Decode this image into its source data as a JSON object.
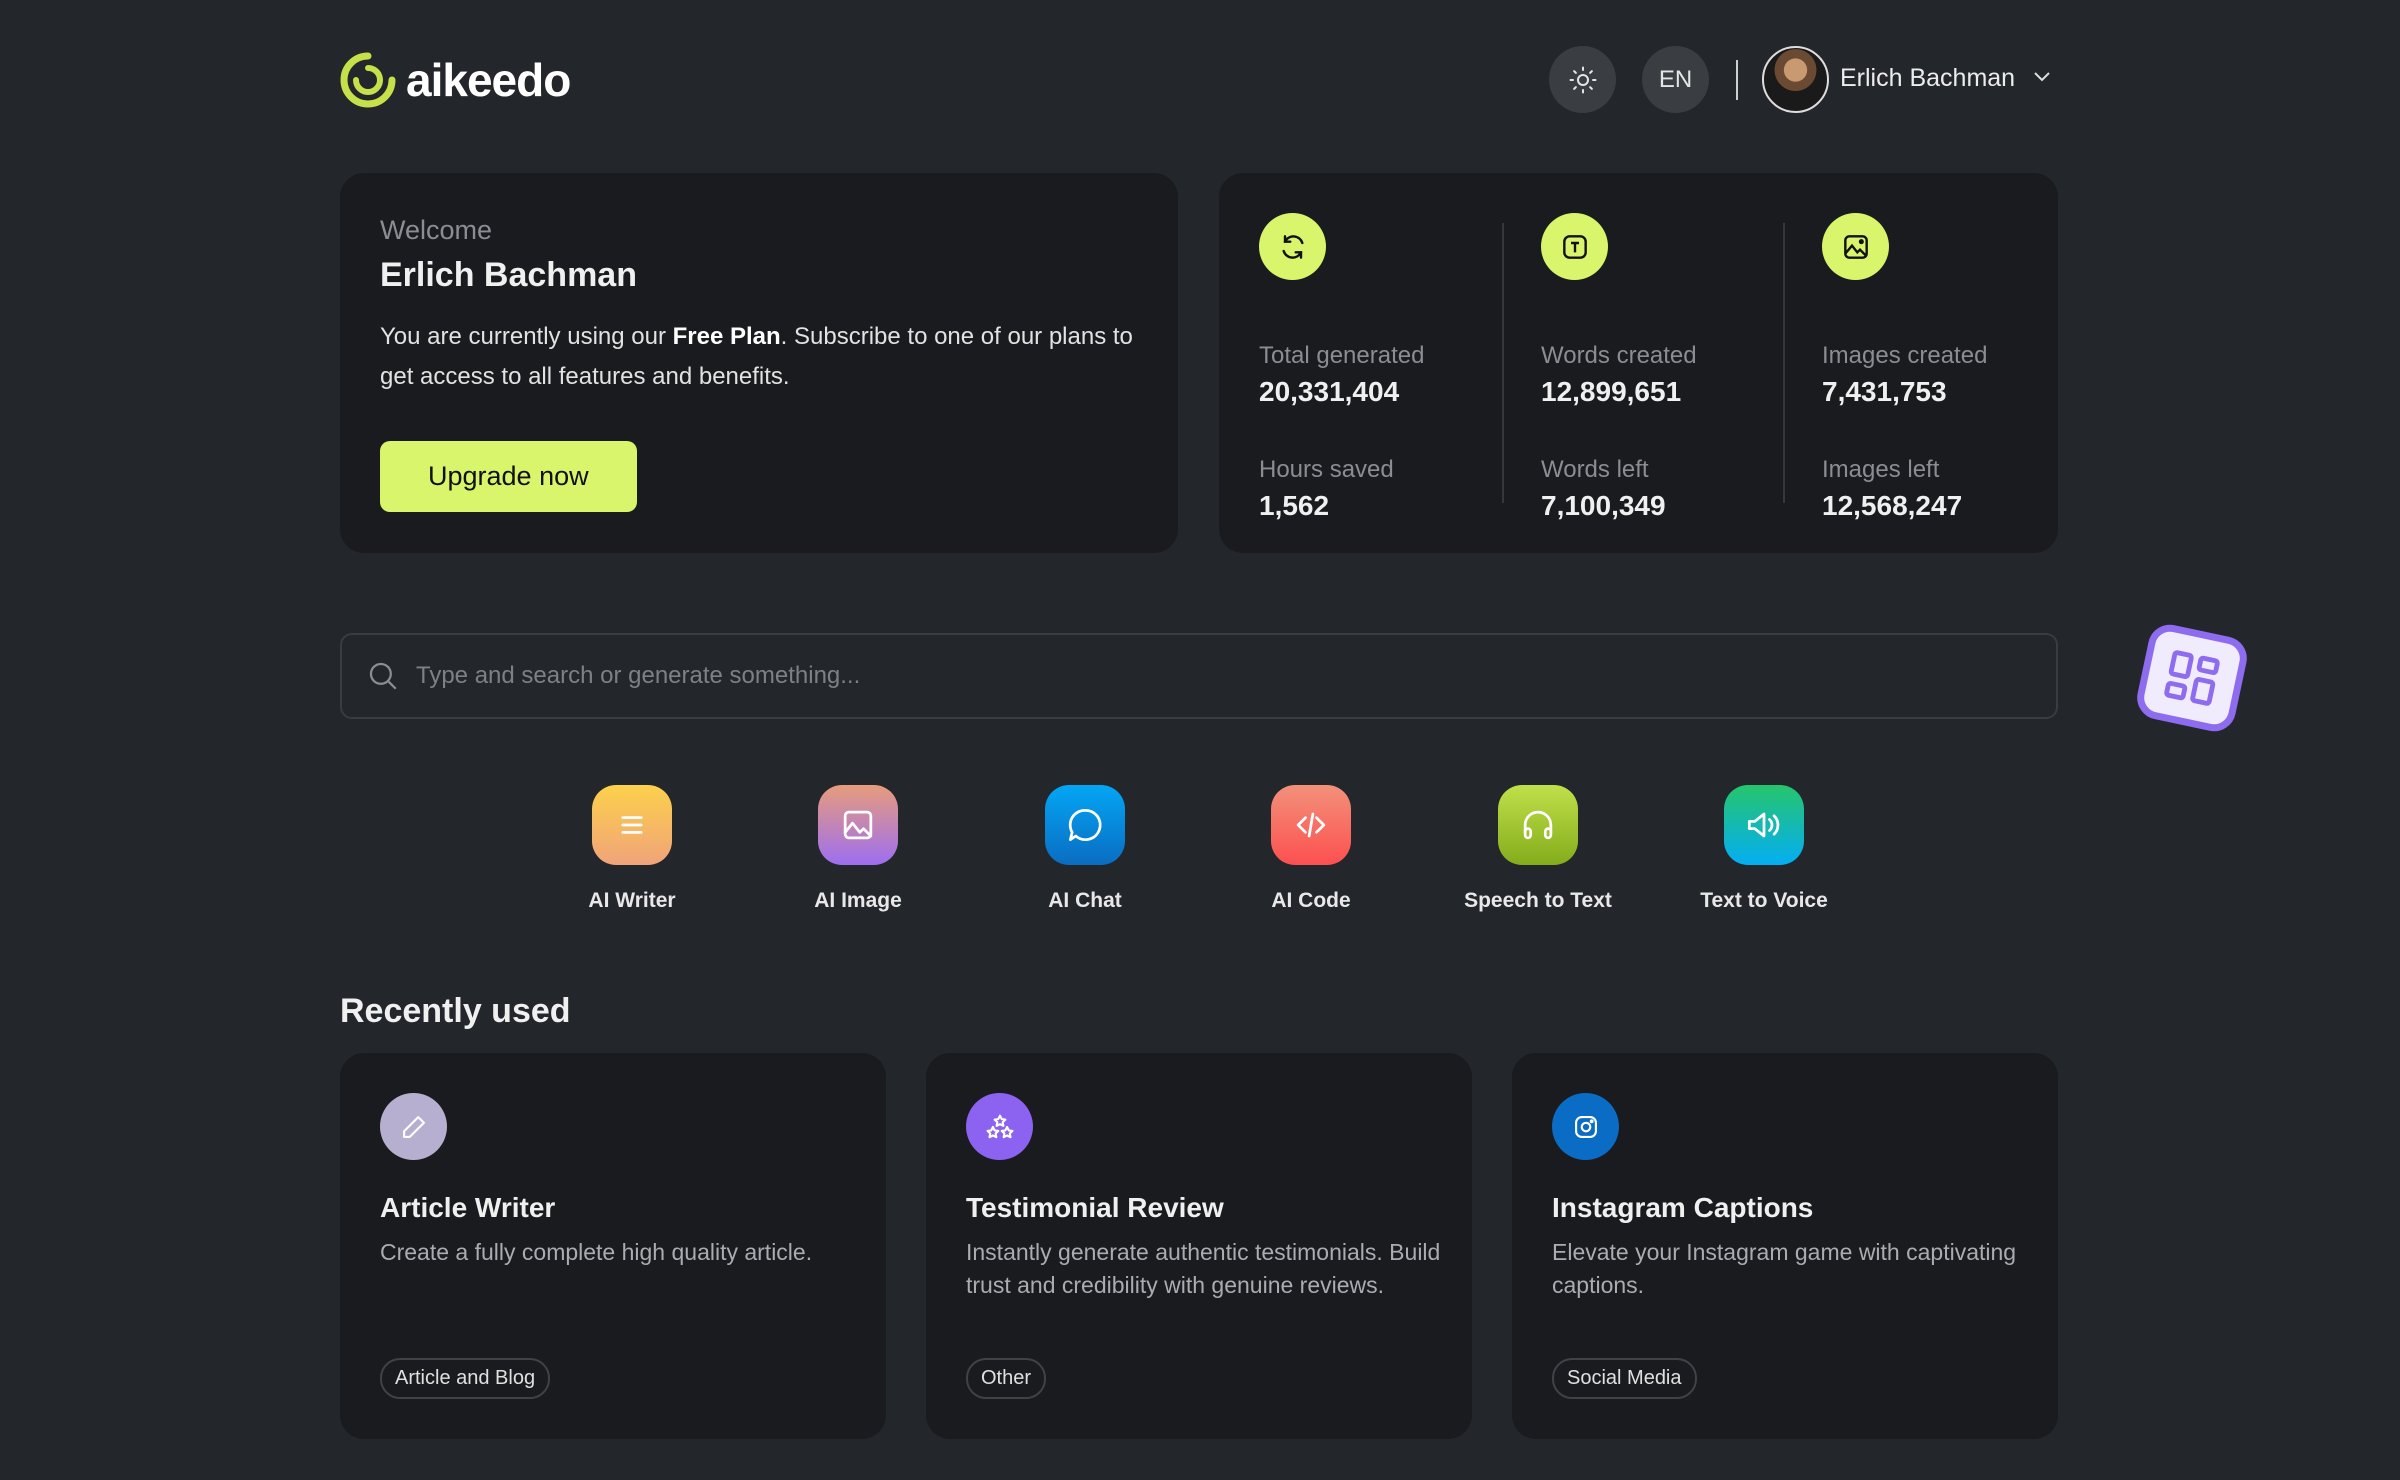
{
  "header": {
    "logo_text": "aikeedo",
    "theme_icon": "sun-icon",
    "language": "EN",
    "user_name": "Erlich Bachman"
  },
  "welcome": {
    "label": "Welcome",
    "name": "Erlich Bachman",
    "text_before": "You are currently using our ",
    "plan": "Free Plan",
    "text_after": ". Subscribe to one of our plans to get access to all features and benefits.",
    "button": "Upgrade now"
  },
  "stats": [
    {
      "icon": "refresh-icon",
      "items": [
        {
          "label": "Total generated",
          "value": "20,331,404"
        },
        {
          "label": "Hours saved",
          "value": "1,562"
        }
      ]
    },
    {
      "icon": "text-icon",
      "items": [
        {
          "label": "Words created",
          "value": "12,899,651"
        },
        {
          "label": "Words left",
          "value": "7,100,349"
        }
      ]
    },
    {
      "icon": "image-icon",
      "items": [
        {
          "label": "Images created",
          "value": "7,431,753"
        },
        {
          "label": "Images left",
          "value": "12,568,247"
        }
      ]
    }
  ],
  "search": {
    "placeholder": "Type and search or generate something..."
  },
  "apps": [
    {
      "label": "AI Writer",
      "icon": "lines-icon",
      "colors": [
        "#fdd14b",
        "#f0a37a"
      ]
    },
    {
      "label": "AI Image",
      "icon": "image-icon",
      "colors": [
        "#e79c7c",
        "#9d6ef0"
      ]
    },
    {
      "label": "AI Chat",
      "icon": "chat-icon",
      "colors": [
        "#04a6f5",
        "#0a6dc2"
      ]
    },
    {
      "label": "AI Code",
      "icon": "code-icon",
      "colors": [
        "#f2917a",
        "#fd5050"
      ]
    },
    {
      "label": "Speech to Text",
      "icon": "headphones-icon",
      "colors": [
        "#c0e04a",
        "#84ac1b"
      ]
    },
    {
      "label": "Text to Voice",
      "icon": "speaker-icon",
      "colors": [
        "#26c56c",
        "#04aef4"
      ]
    }
  ],
  "recent": {
    "title": "Recently used",
    "items": [
      {
        "title": "Article Writer",
        "description": "Create a fully complete high quality article.",
        "tag": "Article and Blog",
        "icon": "pencil-icon",
        "color": "#b7afcf"
      },
      {
        "title": "Testimonial Review",
        "description": "Instantly generate authentic testimonials. Build trust and credibility with genuine reviews.",
        "tag": "Other",
        "icon": "stars-icon",
        "color": "#8b63f0"
      },
      {
        "title": "Instagram Captions",
        "description": "Elevate your Instagram game with captivating captions.",
        "tag": "Social Media",
        "icon": "instagram-icon",
        "color": "#0a6cc4"
      }
    ]
  },
  "colors": {
    "accent": "#d9f56c",
    "background": "#23262b",
    "card": "#191b1e"
  }
}
